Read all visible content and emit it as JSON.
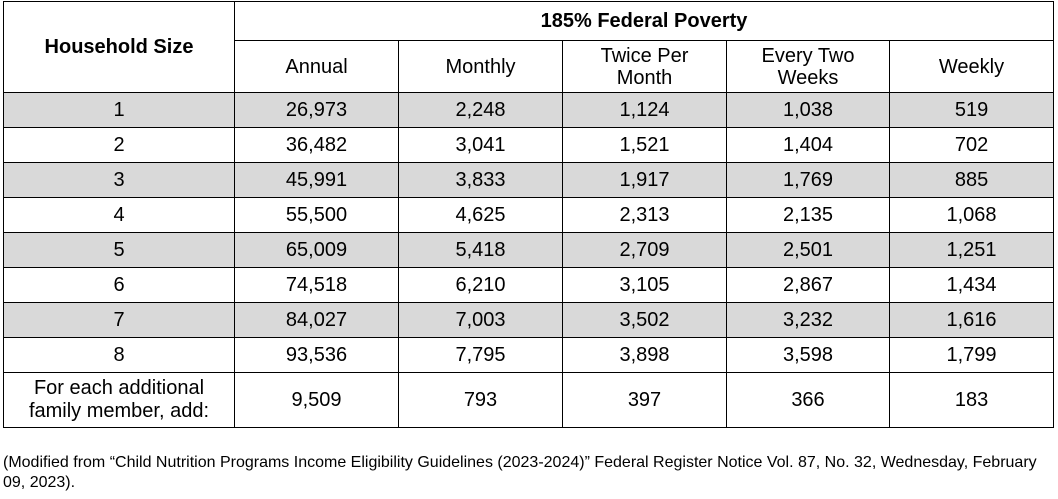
{
  "table": {
    "household_header": "Household Size",
    "group_header": "185% Federal Poverty",
    "columns": [
      "Annual",
      "Monthly",
      "Twice Per\nMonth",
      "Every Two\nWeeks",
      "Weekly"
    ],
    "rows": [
      {
        "size": "1",
        "values": [
          "26,973",
          "2,248",
          "1,124",
          "1,038",
          "519"
        ]
      },
      {
        "size": "2",
        "values": [
          "36,482",
          "3,041",
          "1,521",
          "1,404",
          "702"
        ]
      },
      {
        "size": "3",
        "values": [
          "45,991",
          "3,833",
          "1,917",
          "1,769",
          "885"
        ]
      },
      {
        "size": "4",
        "values": [
          "55,500",
          "4,625",
          "2,313",
          "2,135",
          "1,068"
        ]
      },
      {
        "size": "5",
        "values": [
          "65,009",
          "5,418",
          "2,709",
          "2,501",
          "1,251"
        ]
      },
      {
        "size": "6",
        "values": [
          "74,518",
          "6,210",
          "3,105",
          "2,867",
          "1,434"
        ]
      },
      {
        "size": "7",
        "values": [
          "84,027",
          "7,003",
          "3,502",
          "3,232",
          "1,616"
        ]
      },
      {
        "size": "8",
        "values": [
          "93,536",
          "7,795",
          "3,898",
          "3,598",
          "1,799"
        ]
      }
    ],
    "additional": {
      "label": "For each additional\nfamily member, add:",
      "values": [
        "9,509",
        "793",
        "397",
        "366",
        "183"
      ]
    },
    "row_shading": "#d9d9d9"
  },
  "footnote": "(Modified from “Child Nutrition Programs Income Eligibility Guidelines (2023-2024)” Federal Register Notice Vol. 87, No. 32, Wednesday, February 09, 2023)."
}
